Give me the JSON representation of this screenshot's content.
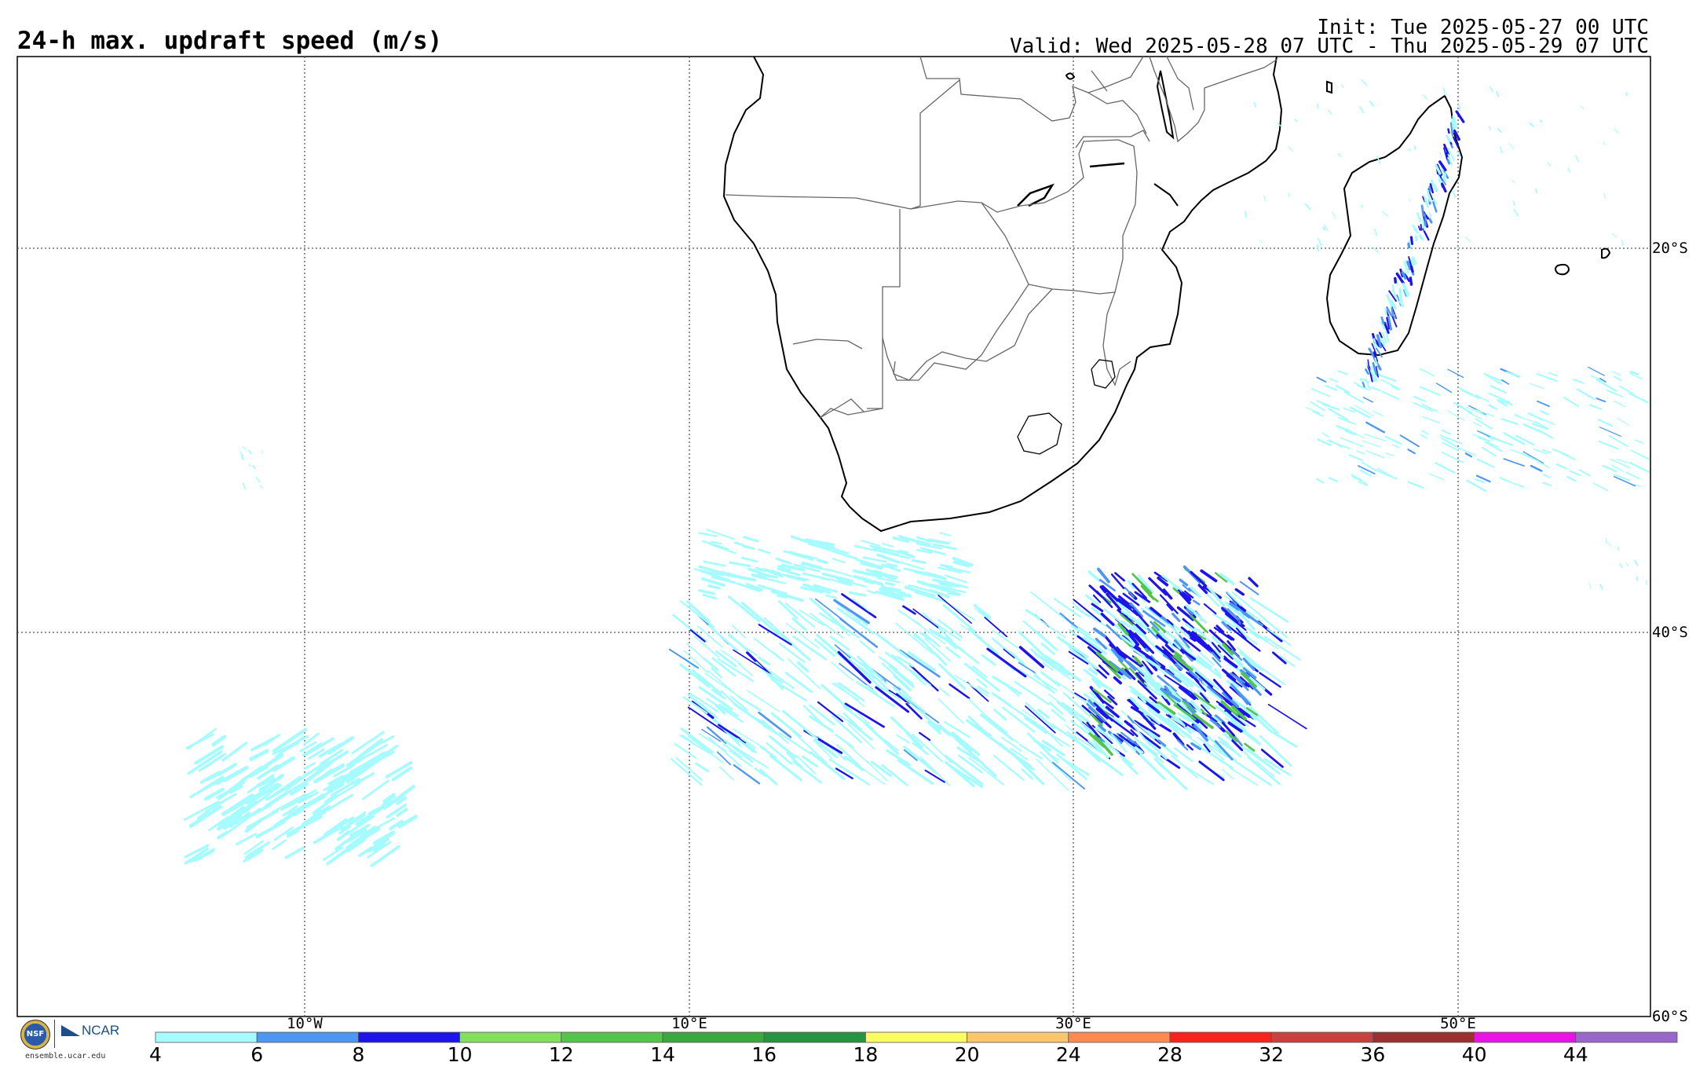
{
  "header": {
    "title": "24-h max. updraft speed (m/s)",
    "init": "Init: Tue 2025-05-27 00 UTC",
    "valid": "Valid: Wed 2025-05-28 07 UTC - Thu 2025-05-29 07 UTC"
  },
  "map": {
    "lon_labels": [
      "10°W",
      "10°E",
      "30°E",
      "50°E"
    ],
    "lat_labels": [
      "20°S",
      "40°S",
      "60°S"
    ],
    "projection": "lat-lon",
    "gridlines": true
  },
  "colorbar": {
    "ticks": [
      "4",
      "6",
      "8",
      "10",
      "12",
      "14",
      "16",
      "18",
      "20",
      "24",
      "28",
      "32",
      "36",
      "40",
      "44"
    ],
    "colors": [
      "#a6fbff",
      "#4d97f2",
      "#1d13eb",
      "#82e05c",
      "#55c44b",
      "#3aa83c",
      "#279440",
      "#fdfb63",
      "#fdc66c",
      "#fd8a51",
      "#f9231c",
      "#c9423f",
      "#9a3030",
      "#e813e4",
      "#9966cc"
    ]
  },
  "branding": {
    "nsf": "NSF",
    "ncar": "NCAR",
    "site": "ensemble.ucar.edu"
  },
  "style": {
    "light": "#a6fbff",
    "mid": "#4d97f2",
    "dark": "#1d13eb",
    "green": "#55c44b"
  }
}
